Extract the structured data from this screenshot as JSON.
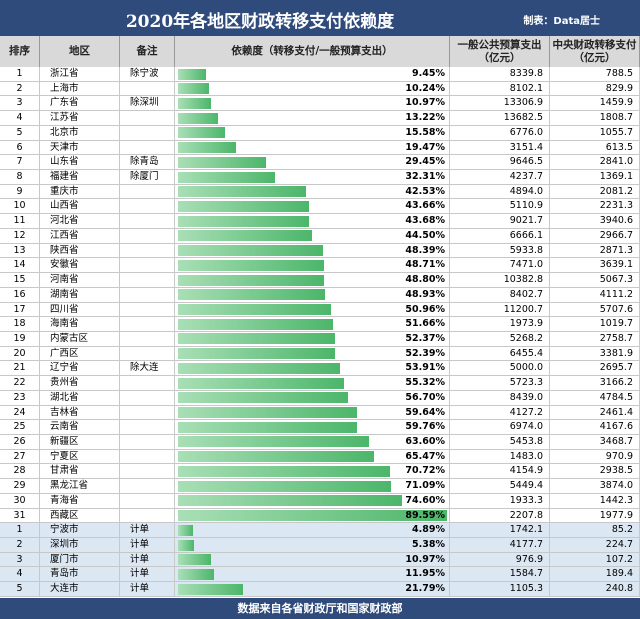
{
  "header": {
    "title": "2020年各地区财政转移支付依赖度",
    "credit": "制表：Data居士"
  },
  "table": {
    "columns": [
      "排序",
      "地区",
      "备注",
      "依赖度（转移支付/一般预算支出）",
      "一般公共预算支出（亿元）",
      "中央财政转移支付（亿元）"
    ],
    "rows": [
      {
        "rank": "1",
        "region": "浙江省",
        "note": "除宁波",
        "ratio": 9.45,
        "ratio_label": "9.45%",
        "spending": "8339.8",
        "transfer": "788.5"
      },
      {
        "rank": "2",
        "region": "上海市",
        "note": null,
        "ratio": 10.24,
        "ratio_label": "10.24%",
        "spending": "8102.1",
        "transfer": "829.9"
      },
      {
        "rank": "3",
        "region": "广东省",
        "note": "除深圳",
        "ratio": 10.97,
        "ratio_label": "10.97%",
        "spending": "13306.9",
        "transfer": "1459.9"
      },
      {
        "rank": "4",
        "region": "江苏省",
        "note": null,
        "ratio": 13.22,
        "ratio_label": "13.22%",
        "spending": "13682.5",
        "transfer": "1808.7"
      },
      {
        "rank": "5",
        "region": "北京市",
        "note": null,
        "ratio": 15.58,
        "ratio_label": "15.58%",
        "spending": "6776.0",
        "transfer": "1055.7"
      },
      {
        "rank": "6",
        "region": "天津市",
        "note": null,
        "ratio": 19.47,
        "ratio_label": "19.47%",
        "spending": "3151.4",
        "transfer": "613.5"
      },
      {
        "rank": "7",
        "region": "山东省",
        "note": "除青岛",
        "ratio": 29.45,
        "ratio_label": "29.45%",
        "spending": "9646.5",
        "transfer": "2841.0"
      },
      {
        "rank": "8",
        "region": "福建省",
        "note": "除厦门",
        "ratio": 32.31,
        "ratio_label": "32.31%",
        "spending": "4237.7",
        "transfer": "1369.1"
      },
      {
        "rank": "9",
        "region": "重庆市",
        "note": null,
        "ratio": 42.53,
        "ratio_label": "42.53%",
        "spending": "4894.0",
        "transfer": "2081.2"
      },
      {
        "rank": "10",
        "region": "山西省",
        "note": null,
        "ratio": 43.66,
        "ratio_label": "43.66%",
        "spending": "5110.9",
        "transfer": "2231.3"
      },
      {
        "rank": "11",
        "region": "河北省",
        "note": null,
        "ratio": 43.68,
        "ratio_label": "43.68%",
        "spending": "9021.7",
        "transfer": "3940.6"
      },
      {
        "rank": "12",
        "region": "江西省",
        "note": null,
        "ratio": 44.5,
        "ratio_label": "44.50%",
        "spending": "6666.1",
        "transfer": "2966.7"
      },
      {
        "rank": "13",
        "region": "陕西省",
        "note": null,
        "ratio": 48.39,
        "ratio_label": "48.39%",
        "spending": "5933.8",
        "transfer": "2871.3"
      },
      {
        "rank": "14",
        "region": "安徽省",
        "note": null,
        "ratio": 48.71,
        "ratio_label": "48.71%",
        "spending": "7471.0",
        "transfer": "3639.1"
      },
      {
        "rank": "15",
        "region": "河南省",
        "note": null,
        "ratio": 48.8,
        "ratio_label": "48.80%",
        "spending": "10382.8",
        "transfer": "5067.3"
      },
      {
        "rank": "16",
        "region": "湖南省",
        "note": null,
        "ratio": 48.93,
        "ratio_label": "48.93%",
        "spending": "8402.7",
        "transfer": "4111.2"
      },
      {
        "rank": "17",
        "region": "四川省",
        "note": null,
        "ratio": 50.96,
        "ratio_label": "50.96%",
        "spending": "11200.7",
        "transfer": "5707.6"
      },
      {
        "rank": "18",
        "region": "海南省",
        "note": null,
        "ratio": 51.66,
        "ratio_label": "51.66%",
        "spending": "1973.9",
        "transfer": "1019.7"
      },
      {
        "rank": "19",
        "region": "内蒙古区",
        "note": null,
        "ratio": 52.37,
        "ratio_label": "52.37%",
        "spending": "5268.2",
        "transfer": "2758.7"
      },
      {
        "rank": "20",
        "region": "广西区",
        "note": null,
        "ratio": 52.39,
        "ratio_label": "52.39%",
        "spending": "6455.4",
        "transfer": "3381.9"
      },
      {
        "rank": "21",
        "region": "辽宁省",
        "note": "除大连",
        "ratio": 53.91,
        "ratio_label": "53.91%",
        "spending": "5000.0",
        "transfer": "2695.7"
      },
      {
        "rank": "22",
        "region": "贵州省",
        "note": null,
        "ratio": 55.32,
        "ratio_label": "55.32%",
        "spending": "5723.3",
        "transfer": "3166.2"
      },
      {
        "rank": "23",
        "region": "湖北省",
        "note": null,
        "ratio": 56.7,
        "ratio_label": "56.70%",
        "spending": "8439.0",
        "transfer": "4784.5"
      },
      {
        "rank": "24",
        "region": "吉林省",
        "note": null,
        "ratio": 59.64,
        "ratio_label": "59.64%",
        "spending": "4127.2",
        "transfer": "2461.4"
      },
      {
        "rank": "25",
        "region": "云南省",
        "note": null,
        "ratio": 59.76,
        "ratio_label": "59.76%",
        "spending": "6974.0",
        "transfer": "4167.6"
      },
      {
        "rank": "26",
        "region": "新疆区",
        "note": null,
        "ratio": 63.6,
        "ratio_label": "63.60%",
        "spending": "5453.8",
        "transfer": "3468.7"
      },
      {
        "rank": "27",
        "region": "宁夏区",
        "note": null,
        "ratio": 65.47,
        "ratio_label": "65.47%",
        "spending": "1483.0",
        "transfer": "970.9"
      },
      {
        "rank": "28",
        "region": "甘肃省",
        "note": null,
        "ratio": 70.72,
        "ratio_label": "70.72%",
        "spending": "4154.9",
        "transfer": "2938.5"
      },
      {
        "rank": "29",
        "region": "黑龙江省",
        "note": null,
        "ratio": 71.09,
        "ratio_label": "71.09%",
        "spending": "5449.4",
        "transfer": "3874.0"
      },
      {
        "rank": "30",
        "region": "青海省",
        "note": null,
        "ratio": 74.6,
        "ratio_label": "74.60%",
        "spending": "1933.3",
        "transfer": "1442.3"
      },
      {
        "rank": "31",
        "region": "西藏区",
        "note": null,
        "ratio": 89.59,
        "ratio_label": "89.59%",
        "spending": "2207.8",
        "transfer": "1977.9"
      },
      {
        "rank": "1",
        "region": "宁波市",
        "note": "计单",
        "ratio": 4.89,
        "ratio_label": "4.89%",
        "spending": "1742.1",
        "transfer": "85.2",
        "city": true
      },
      {
        "rank": "2",
        "region": "深圳市",
        "note": "计单",
        "ratio": 5.38,
        "ratio_label": "5.38%",
        "spending": "4177.7",
        "transfer": "224.7",
        "city": true
      },
      {
        "rank": "3",
        "region": "厦门市",
        "note": "计单",
        "ratio": 10.97,
        "ratio_label": "10.97%",
        "spending": "976.9",
        "transfer": "107.2",
        "city": true
      },
      {
        "rank": "4",
        "region": "青岛市",
        "note": "计单",
        "ratio": 11.95,
        "ratio_label": "11.95%",
        "spending": "1584.7",
        "transfer": "189.4",
        "city": true
      },
      {
        "rank": "5",
        "region": "大连市",
        "note": "计单",
        "ratio": 21.79,
        "ratio_label": "21.79%",
        "spending": "1105.3",
        "transfer": "240.8",
        "city": true
      }
    ]
  },
  "footer": "数据来自各省财政厅和国家财政部"
}
